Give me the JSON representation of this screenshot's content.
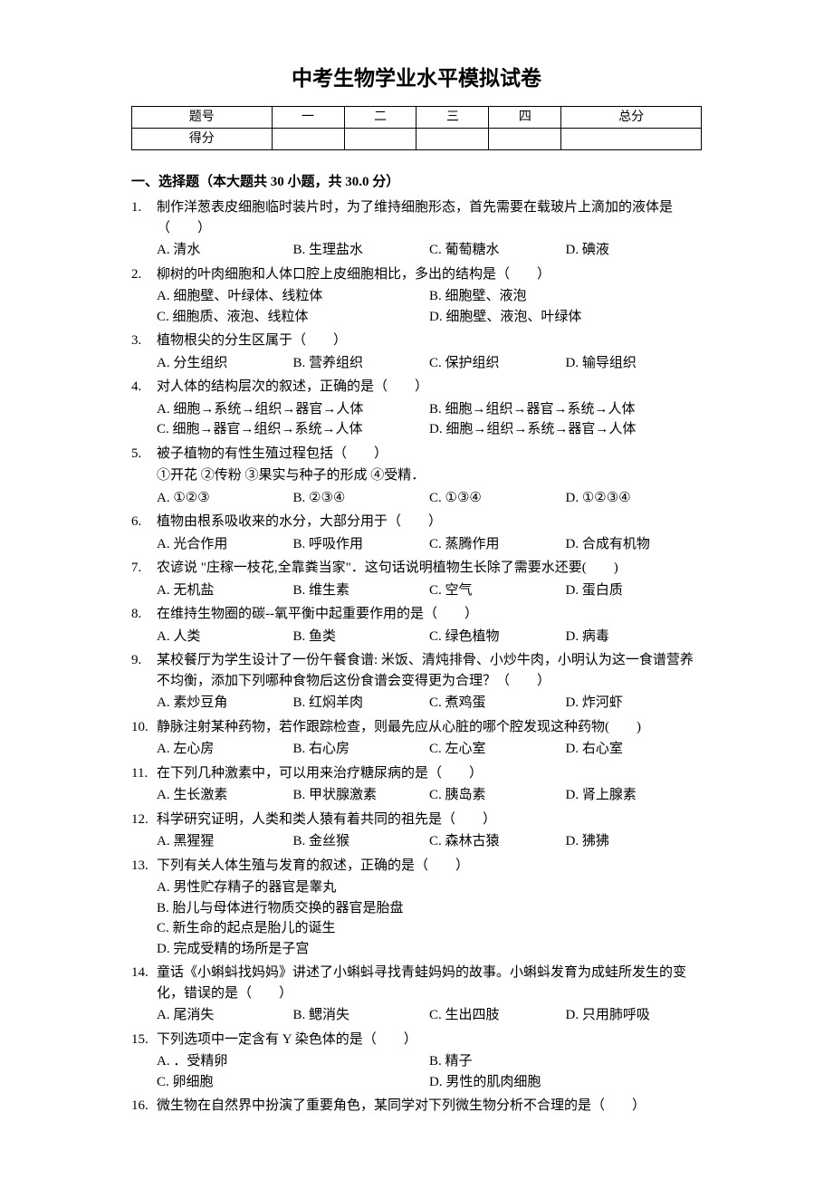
{
  "title": "中考生物学业水平模拟试卷",
  "table": {
    "headers": [
      "题号",
      "一",
      "二",
      "三",
      "四",
      "总分"
    ],
    "row2": [
      "得分",
      "",
      "",
      "",
      "",
      ""
    ]
  },
  "section": "一、选择题（本大题共 30 小题，共 30.0 分）",
  "questions": [
    {
      "num": "1.",
      "stem": "制作洋葱表皮细胞临时装片时，为了维持细胞形态，首先需要在载玻片上滴加的液体是（　　）",
      "layout": "opt-4",
      "options": [
        "A. 清水",
        "B. 生理盐水",
        "C. 葡萄糖水",
        "D. 碘液"
      ]
    },
    {
      "num": "2.",
      "stem": "柳树的叶肉细胞和人体口腔上皮细胞相比，多出的结构是（　　）",
      "layout": "opt-2",
      "options": [
        "A. 细胞壁、叶绿体、线粒体",
        "B. 细胞壁、液泡",
        "C. 细胞质、液泡、线粒体",
        "D. 细胞壁、液泡、叶绿体"
      ]
    },
    {
      "num": "3.",
      "stem": "植物根尖的分生区属于（　　）",
      "layout": "opt-4",
      "options": [
        "A. 分生组织",
        "B. 营养组织",
        "C. 保护组织",
        "D. 输导组织"
      ]
    },
    {
      "num": "4.",
      "stem": "对人体的结构层次的叙述，正确的是（　　）",
      "layout": "opt-2",
      "options": [
        "A. 细胞→系统→组织→器官→人体",
        "B. 细胞→组织→器官→系统→人体",
        "C. 细胞→器官→组织→系统→人体",
        "D. 细胞→组织→系统→器官→人体"
      ]
    },
    {
      "num": "5.",
      "stem": "被子植物的有性生殖过程包括（　　）",
      "sub": "①开花 ②传粉 ③果实与种子的形成 ④受精．",
      "layout": "opt-4",
      "options": [
        "A. ①②③",
        "B. ②③④",
        "C. ①③④",
        "D. ①②③④"
      ]
    },
    {
      "num": "6.",
      "stem": "植物由根系吸收来的水分，大部分用于（　　）",
      "layout": "opt-4",
      "options": [
        "A. 光合作用",
        "B. 呼吸作用",
        "C. 蒸腾作用",
        "D. 合成有机物"
      ]
    },
    {
      "num": "7.",
      "stem": "农谚说 \"庄稼一枝花,全靠粪当家\"．这句话说明植物生长除了需要水还要(　　)",
      "layout": "opt-4",
      "options": [
        "A. 无机盐",
        "B. 维生素",
        "C. 空气",
        "D. 蛋白质"
      ]
    },
    {
      "num": "8.",
      "stem": "在维持生物圈的碳--氧平衡中起重要作用的是（　　）",
      "layout": "opt-4",
      "options": [
        "A. 人类",
        "B. 鱼类",
        "C. 绿色植物",
        "D. 病毒"
      ]
    },
    {
      "num": "9.",
      "stem": "某校餐厅为学生设计了一份午餐食谱: 米饭、清炖排骨、小炒牛肉，小明认为这一食谱营养不均衡，添加下列哪种食物后这份食谱会变得更为合理？（　　）",
      "layout": "opt-4",
      "options": [
        "A. 素炒豆角",
        "B. 红焖羊肉",
        "C. 煮鸡蛋",
        "D. 炸河虾"
      ]
    },
    {
      "num": "10.",
      "stem": "静脉注射某种药物，若作跟踪检查，则最先应从心脏的哪个腔发现这种药物(　　)",
      "layout": "opt-4",
      "options": [
        "A. 左心房",
        "B. 右心房",
        "C. 左心室",
        "D. 右心室"
      ]
    },
    {
      "num": "11.",
      "stem": "在下列几种激素中，可以用来治疗糖尿病的是（　　）",
      "layout": "opt-4",
      "options": [
        "A. 生长激素",
        "B. 甲状腺激素",
        "C. 胰岛素",
        "D. 肾上腺素"
      ]
    },
    {
      "num": "12.",
      "stem": "科学研究证明，人类和类人猿有着共同的祖先是（　　）",
      "layout": "opt-4",
      "options": [
        "A. 黑猩猩",
        "B. 金丝猴",
        "C. 森林古猿",
        "D. 狒狒"
      ]
    },
    {
      "num": "13.",
      "stem": "下列有关人体生殖与发育的叙述，正确的是（　　）",
      "layout": "opt-1",
      "options": [
        "A. 男性贮存精子的器官是睾丸",
        "B. 胎儿与母体进行物质交换的器官是胎盘",
        "C. 新生命的起点是胎儿的诞生",
        "D. 完成受精的场所是子宫"
      ]
    },
    {
      "num": "14.",
      "stem": "童话《小蝌蚪找妈妈》讲述了小蝌蚪寻找青蛙妈妈的故事。小蝌蚪发育为成蛙所发生的变化，错误的是（　　）",
      "layout": "opt-4",
      "options": [
        "A. 尾消失",
        "B. 鳃消失",
        "C. 生出四肢",
        "D. 只用肺呼吸"
      ]
    },
    {
      "num": "15.",
      "stem": "下列选项中一定含有 Y 染色体的是（　　）",
      "layout": "opt-2",
      "options": [
        "A. ．受精卵",
        "B. 精子",
        "C. 卵细胞",
        "D. 男性的肌肉细胞"
      ]
    },
    {
      "num": "16.",
      "stem": "微生物在自然界中扮演了重要角色，某同学对下列微生物分析不合理的是（　　）",
      "layout": "opt-4",
      "options": []
    }
  ]
}
